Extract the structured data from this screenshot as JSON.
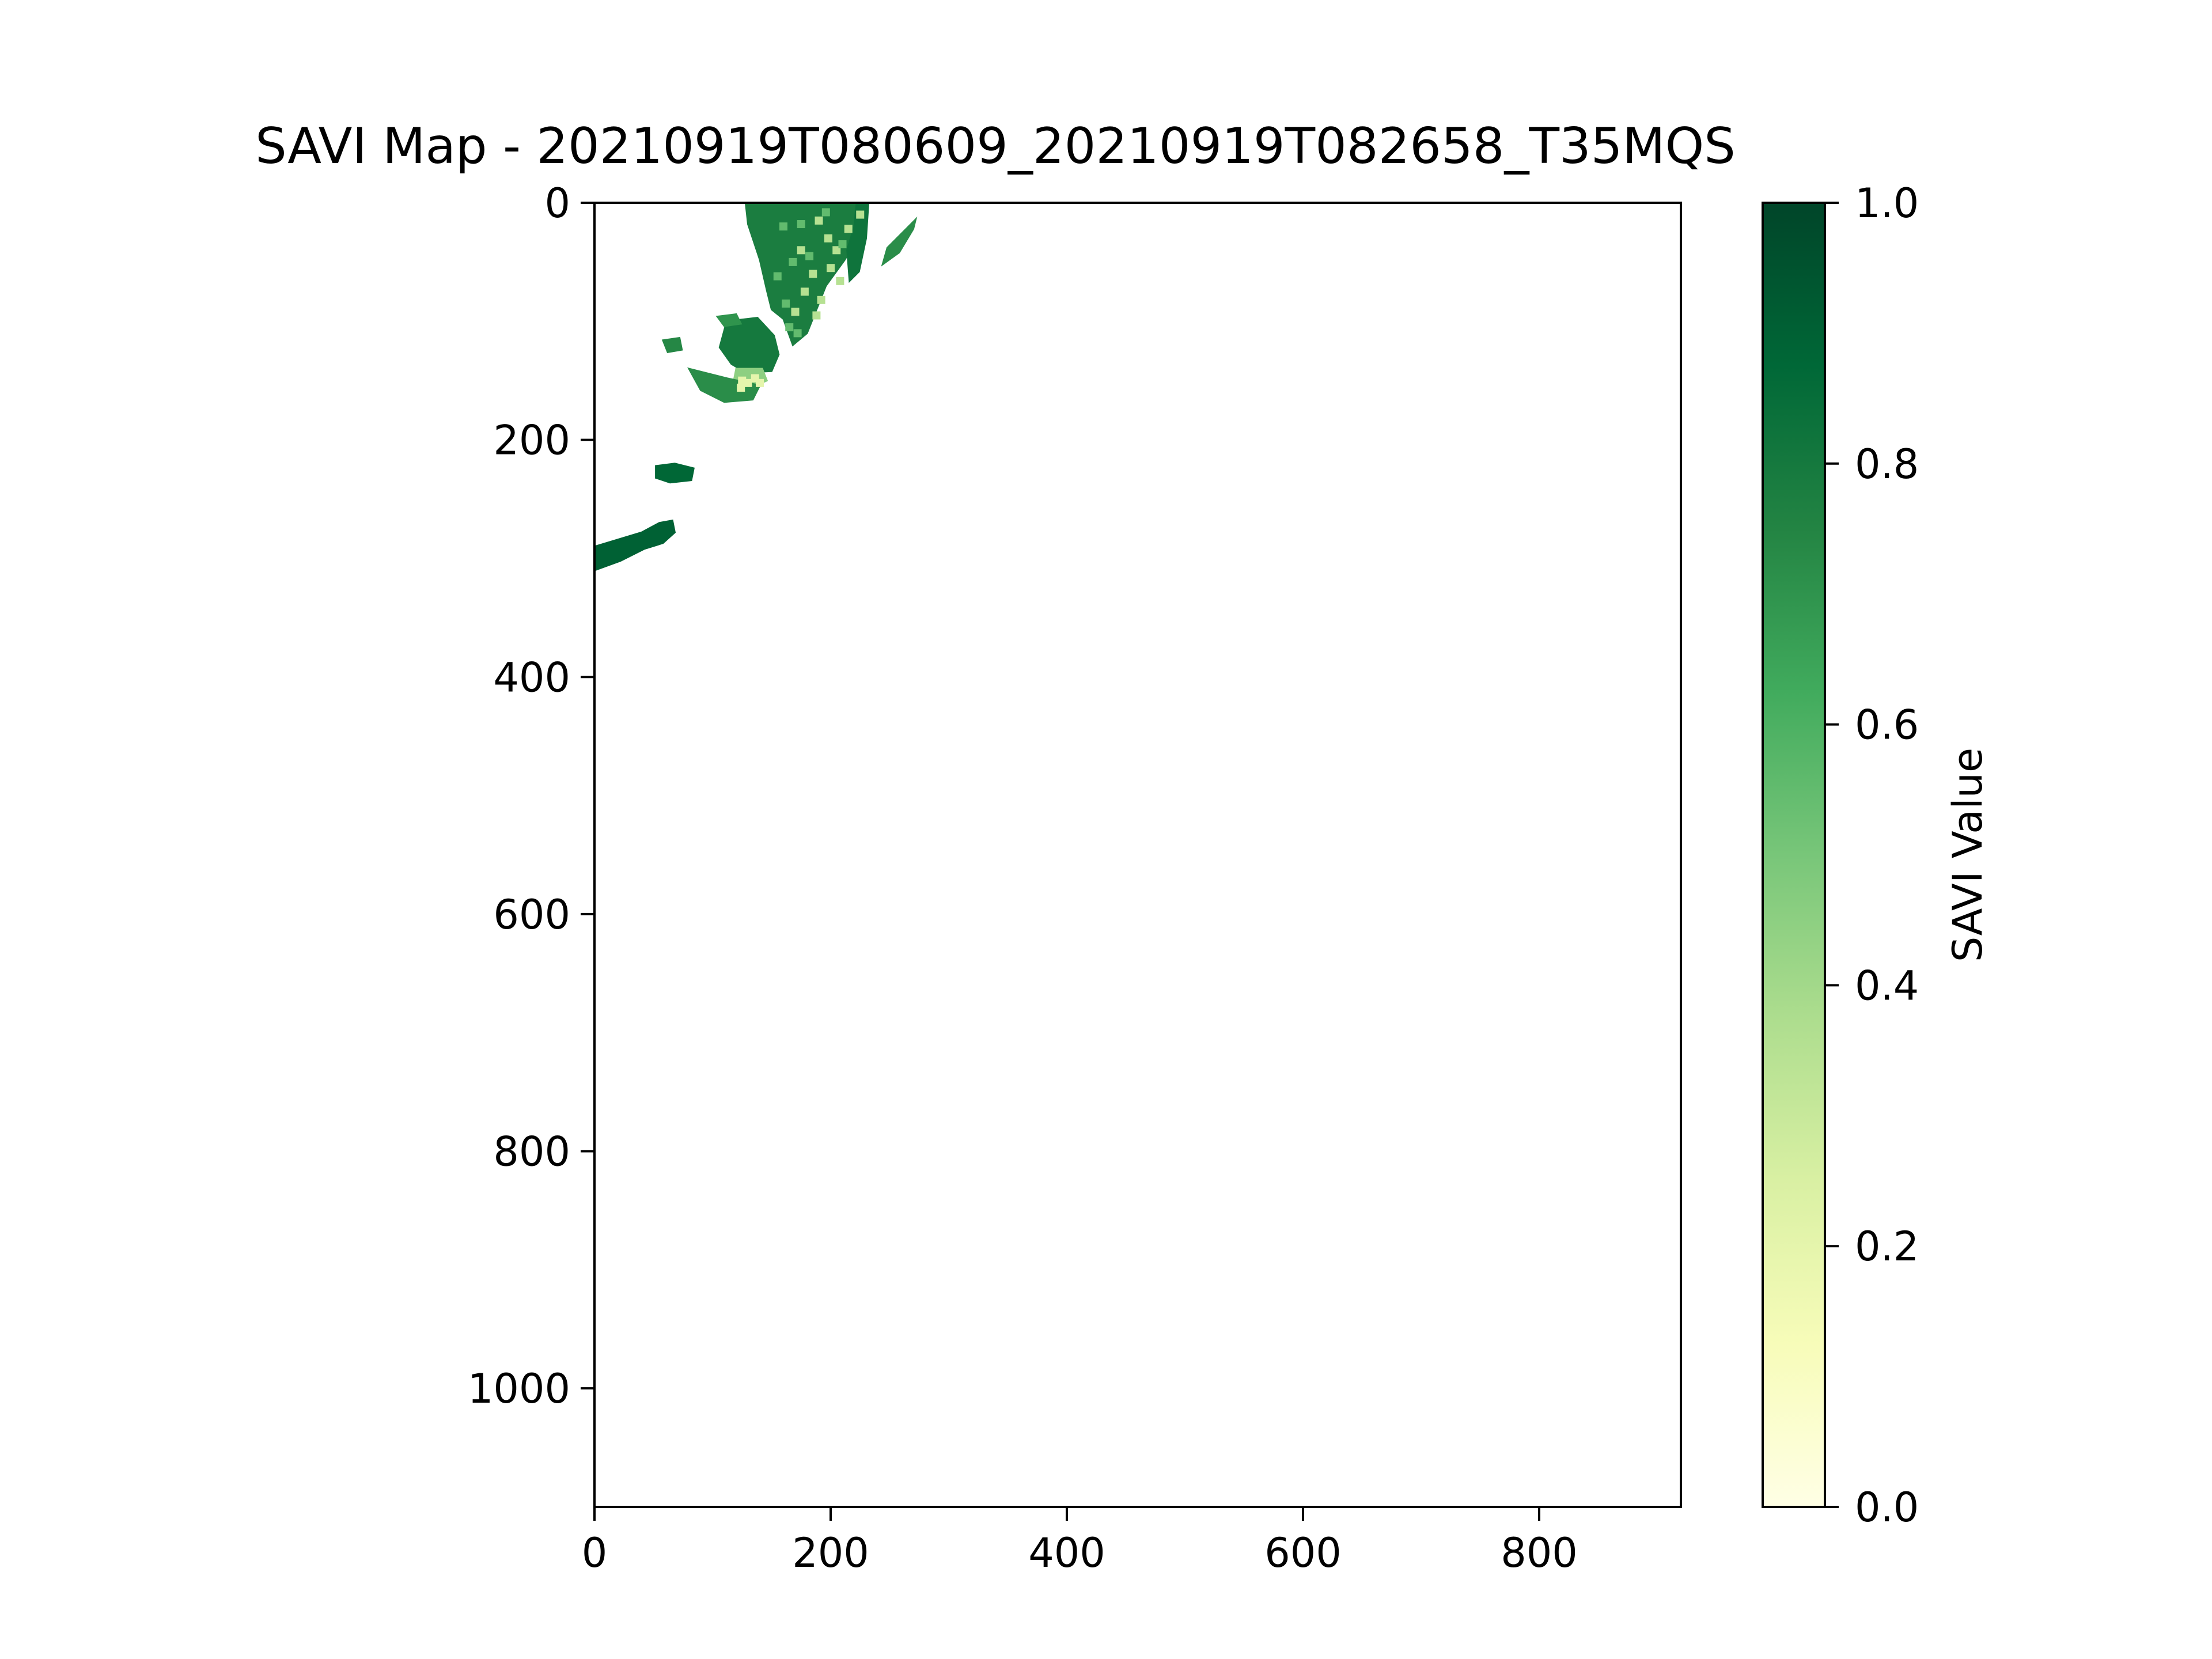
{
  "chart_data": {
    "type": "heatmap",
    "title": "SAVI Map - 20210919T080609_20210919T082658_T35MQS",
    "xlabel": "",
    "ylabel": "",
    "xlim": [
      0,
      920
    ],
    "ylim": [
      1100,
      0
    ],
    "x_ticks": [
      0,
      200,
      400,
      600,
      800
    ],
    "x_tick_labels": [
      "0",
      "200",
      "400",
      "600",
      "800"
    ],
    "y_ticks": [
      0,
      200,
      400,
      600,
      800,
      1000
    ],
    "y_tick_labels": [
      "0",
      "200",
      "400",
      "600",
      "800",
      "1000"
    ],
    "grid": false,
    "colormap": "YlGn",
    "colormap_stops": [
      "#ffffe5",
      "#f7fcb9",
      "#d9f0a3",
      "#addd8e",
      "#78c679",
      "#41ab5d",
      "#238443",
      "#006837",
      "#004529"
    ],
    "colorbar": {
      "label": "SAVI Value",
      "range": [
        0.0,
        1.0
      ],
      "ticks": [
        0.0,
        0.2,
        0.4,
        0.6,
        0.8,
        1.0
      ],
      "tick_labels": [
        "0.0",
        "0.2",
        "0.4",
        "0.6",
        "0.8",
        "1.0"
      ],
      "placement": "right"
    },
    "regions": [
      {
        "name": "northern-landmass",
        "savi": 0.78,
        "polygon": [
          [
            128,
            0
          ],
          [
            232,
            0
          ],
          [
            228,
            20
          ],
          [
            212,
            48
          ],
          [
            196,
            70
          ],
          [
            180,
            110
          ],
          [
            168,
            120
          ],
          [
            160,
            98
          ],
          [
            150,
            90
          ],
          [
            146,
            74
          ],
          [
            140,
            48
          ],
          [
            130,
            18
          ]
        ]
      },
      {
        "name": "northern-landmass-east",
        "savi": 0.82,
        "polygon": [
          [
            222,
            0
          ],
          [
            232,
            0
          ],
          [
            230,
            30
          ],
          [
            224,
            58
          ],
          [
            216,
            66
          ],
          [
            214,
            40
          ],
          [
            220,
            20
          ]
        ]
      },
      {
        "name": "northeast-strip",
        "savi": 0.72,
        "polygon": [
          [
            248,
            38
          ],
          [
            264,
            22
          ],
          [
            272,
            14
          ],
          [
            270,
            22
          ],
          [
            258,
            42
          ],
          [
            244,
            52
          ]
        ]
      },
      {
        "name": "central-cluster",
        "savi": 0.8,
        "polygon": [
          [
            112,
            100
          ],
          [
            138,
            97
          ],
          [
            152,
            112
          ],
          [
            156,
            128
          ],
          [
            150,
            142
          ],
          [
            128,
            143
          ],
          [
            116,
            136
          ],
          [
            106,
            122
          ]
        ]
      },
      {
        "name": "central-lighter-patch",
        "savi": 0.45,
        "polygon": [
          [
            120,
            140
          ],
          [
            142,
            140
          ],
          [
            146,
            150
          ],
          [
            132,
            156
          ],
          [
            118,
            150
          ]
        ]
      },
      {
        "name": "south-lobe",
        "savi": 0.72,
        "polygon": [
          [
            80,
            140
          ],
          [
            112,
            148
          ],
          [
            140,
            154
          ],
          [
            134,
            166
          ],
          [
            110,
            168
          ],
          [
            90,
            158
          ]
        ]
      },
      {
        "name": "small-west-fragment",
        "savi": 0.74,
        "polygon": [
          [
            58,
            116
          ],
          [
            72,
            114
          ],
          [
            74,
            124
          ],
          [
            62,
            126
          ]
        ]
      },
      {
        "name": "small-east-fragment",
        "savi": 0.7,
        "polygon": [
          [
            104,
            96
          ],
          [
            120,
            94
          ],
          [
            124,
            102
          ],
          [
            110,
            104
          ]
        ]
      },
      {
        "name": "islet-mid",
        "savi": 0.88,
        "polygon": [
          [
            52,
            222
          ],
          [
            68,
            220
          ],
          [
            84,
            224
          ],
          [
            82,
            234
          ],
          [
            64,
            236
          ],
          [
            52,
            232
          ]
        ]
      },
      {
        "name": "southwest-strip",
        "savi": 0.9,
        "polygon": [
          [
            0,
            290
          ],
          [
            20,
            284
          ],
          [
            40,
            278
          ],
          [
            55,
            270
          ],
          [
            66,
            268
          ],
          [
            68,
            278
          ],
          [
            58,
            287
          ],
          [
            42,
            292
          ],
          [
            22,
            302
          ],
          [
            0,
            310
          ]
        ]
      }
    ],
    "scatter_pixels": [
      {
        "value": 0.35,
        "points": [
          [
            190,
            15
          ],
          [
            198,
            30
          ],
          [
            205,
            40
          ],
          [
            185,
            60
          ],
          [
            178,
            75
          ],
          [
            170,
            92
          ],
          [
            200,
            55
          ],
          [
            192,
            82
          ],
          [
            215,
            22
          ],
          [
            208,
            66
          ],
          [
            175,
            40
          ],
          [
            188,
            95
          ],
          [
            225,
            10
          ]
        ]
      },
      {
        "value": 0.55,
        "points": [
          [
            160,
            20
          ],
          [
            168,
            50
          ],
          [
            175,
            18
          ],
          [
            182,
            45
          ],
          [
            155,
            62
          ],
          [
            162,
            85
          ],
          [
            196,
            8
          ],
          [
            210,
            35
          ],
          [
            172,
            110
          ],
          [
            165,
            105
          ]
        ]
      },
      {
        "value": 0.2,
        "points": [
          [
            125,
            150
          ],
          [
            130,
            152
          ],
          [
            136,
            148
          ],
          [
            124,
            156
          ],
          [
            140,
            152
          ]
        ]
      }
    ]
  }
}
